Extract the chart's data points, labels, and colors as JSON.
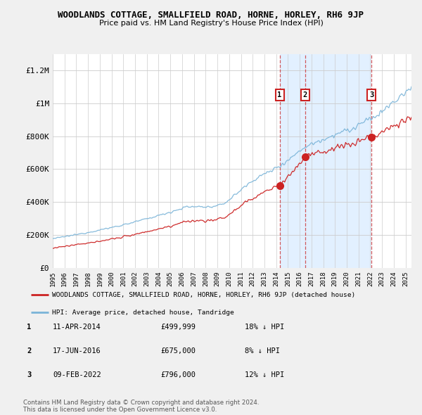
{
  "title": "WOODLANDS COTTAGE, SMALLFIELD ROAD, HORNE, HORLEY, RH6 9JP",
  "subtitle": "Price paid vs. HM Land Registry's House Price Index (HPI)",
  "ylim": [
    0,
    1300000
  ],
  "yticks": [
    0,
    200000,
    400000,
    600000,
    800000,
    1000000,
    1200000
  ],
  "ytick_labels": [
    "£0",
    "£200K",
    "£400K",
    "£600K",
    "£800K",
    "£1M",
    "£1.2M"
  ],
  "hpi_color": "#7ab4d8",
  "property_color": "#cc2222",
  "background_color": "#f0f0f0",
  "plot_bg_color": "#ffffff",
  "sale_transactions": [
    {
      "date_num": 2014.29,
      "price": 499999,
      "label": "1"
    },
    {
      "date_num": 2016.46,
      "price": 675000,
      "label": "2"
    },
    {
      "date_num": 2022.1,
      "price": 796000,
      "label": "3"
    }
  ],
  "shaded_x0": 2014.29,
  "shaded_x1": 2022.1,
  "dashed_lines": [
    2014.29,
    2016.46,
    2022.1
  ],
  "legend_property_label": "WOODLANDS COTTAGE, SMALLFIELD ROAD, HORNE, HORLEY, RH6 9JP (detached house)",
  "legend_hpi_label": "HPI: Average price, detached house, Tandridge",
  "table_rows": [
    [
      "1",
      "11-APR-2014",
      "£499,999",
      "18% ↓ HPI"
    ],
    [
      "2",
      "17-JUN-2016",
      "£675,000",
      "8% ↓ HPI"
    ],
    [
      "3",
      "09-FEB-2022",
      "£796,000",
      "12% ↓ HPI"
    ]
  ],
  "footnote": "Contains HM Land Registry data © Crown copyright and database right 2024.\nThis data is licensed under the Open Government Licence v3.0.",
  "xmin": 1995.0,
  "xmax": 2025.5
}
